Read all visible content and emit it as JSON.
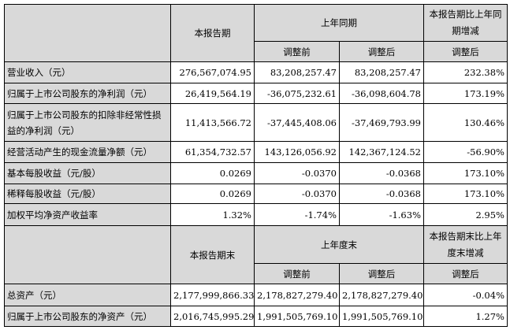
{
  "header1": {
    "current": "本报告期",
    "prior": "上年同期",
    "change": "本报告期比上年同期增减",
    "before": "调整前",
    "after": "调整后",
    "change_after": "调整后"
  },
  "rows1": [
    {
      "label": "营业收入（元）",
      "v": [
        "276,567,074.95",
        "83,208,257.47",
        "83,208,257.47",
        "232.38%"
      ]
    },
    {
      "label": "归属于上市公司股东的净利润（元）",
      "v": [
        "26,419,564.19",
        "-36,075,232.61",
        "-36,098,604.78",
        "173.19%"
      ]
    },
    {
      "label": "归属于上市公司股东的扣除非经常性损益的净利润（元）",
      "v": [
        "11,413,566.72",
        "-37,445,408.06",
        "-37,469,793.99",
        "130.46%"
      ]
    },
    {
      "label": "经营活动产生的现金流量净额（元）",
      "v": [
        "61,354,732.57",
        "143,126,056.92",
        "142,367,124.52",
        "-56.90%"
      ]
    },
    {
      "label": "基本每股收益（元/股）",
      "v": [
        "0.0269",
        "-0.0370",
        "-0.0368",
        "173.10%"
      ]
    },
    {
      "label": "稀释每股收益（元/股）",
      "v": [
        "0.0269",
        "-0.0370",
        "-0.0368",
        "173.10%"
      ]
    },
    {
      "label": "加权平均净资产收益率",
      "v": [
        "1.32%",
        "-1.74%",
        "-1.63%",
        "2.95%"
      ]
    }
  ],
  "header2": {
    "current": "本报告期末",
    "prior": "上年度末",
    "change": "本报告期末比上年度末增减",
    "before": "调整前",
    "after": "调整后",
    "change_after": "调整后"
  },
  "rows2": [
    {
      "label": "总资产（元）",
      "v": [
        "2,177,999,866.33",
        "2,178,827,279.40",
        "2,178,827,279.40",
        "-0.04%"
      ]
    },
    {
      "label": "归属于上市公司股东的净资产（元）",
      "v": [
        "2,016,745,995.29",
        "1,991,505,769.10",
        "1,991,505,769.10",
        "1.27%"
      ]
    }
  ]
}
